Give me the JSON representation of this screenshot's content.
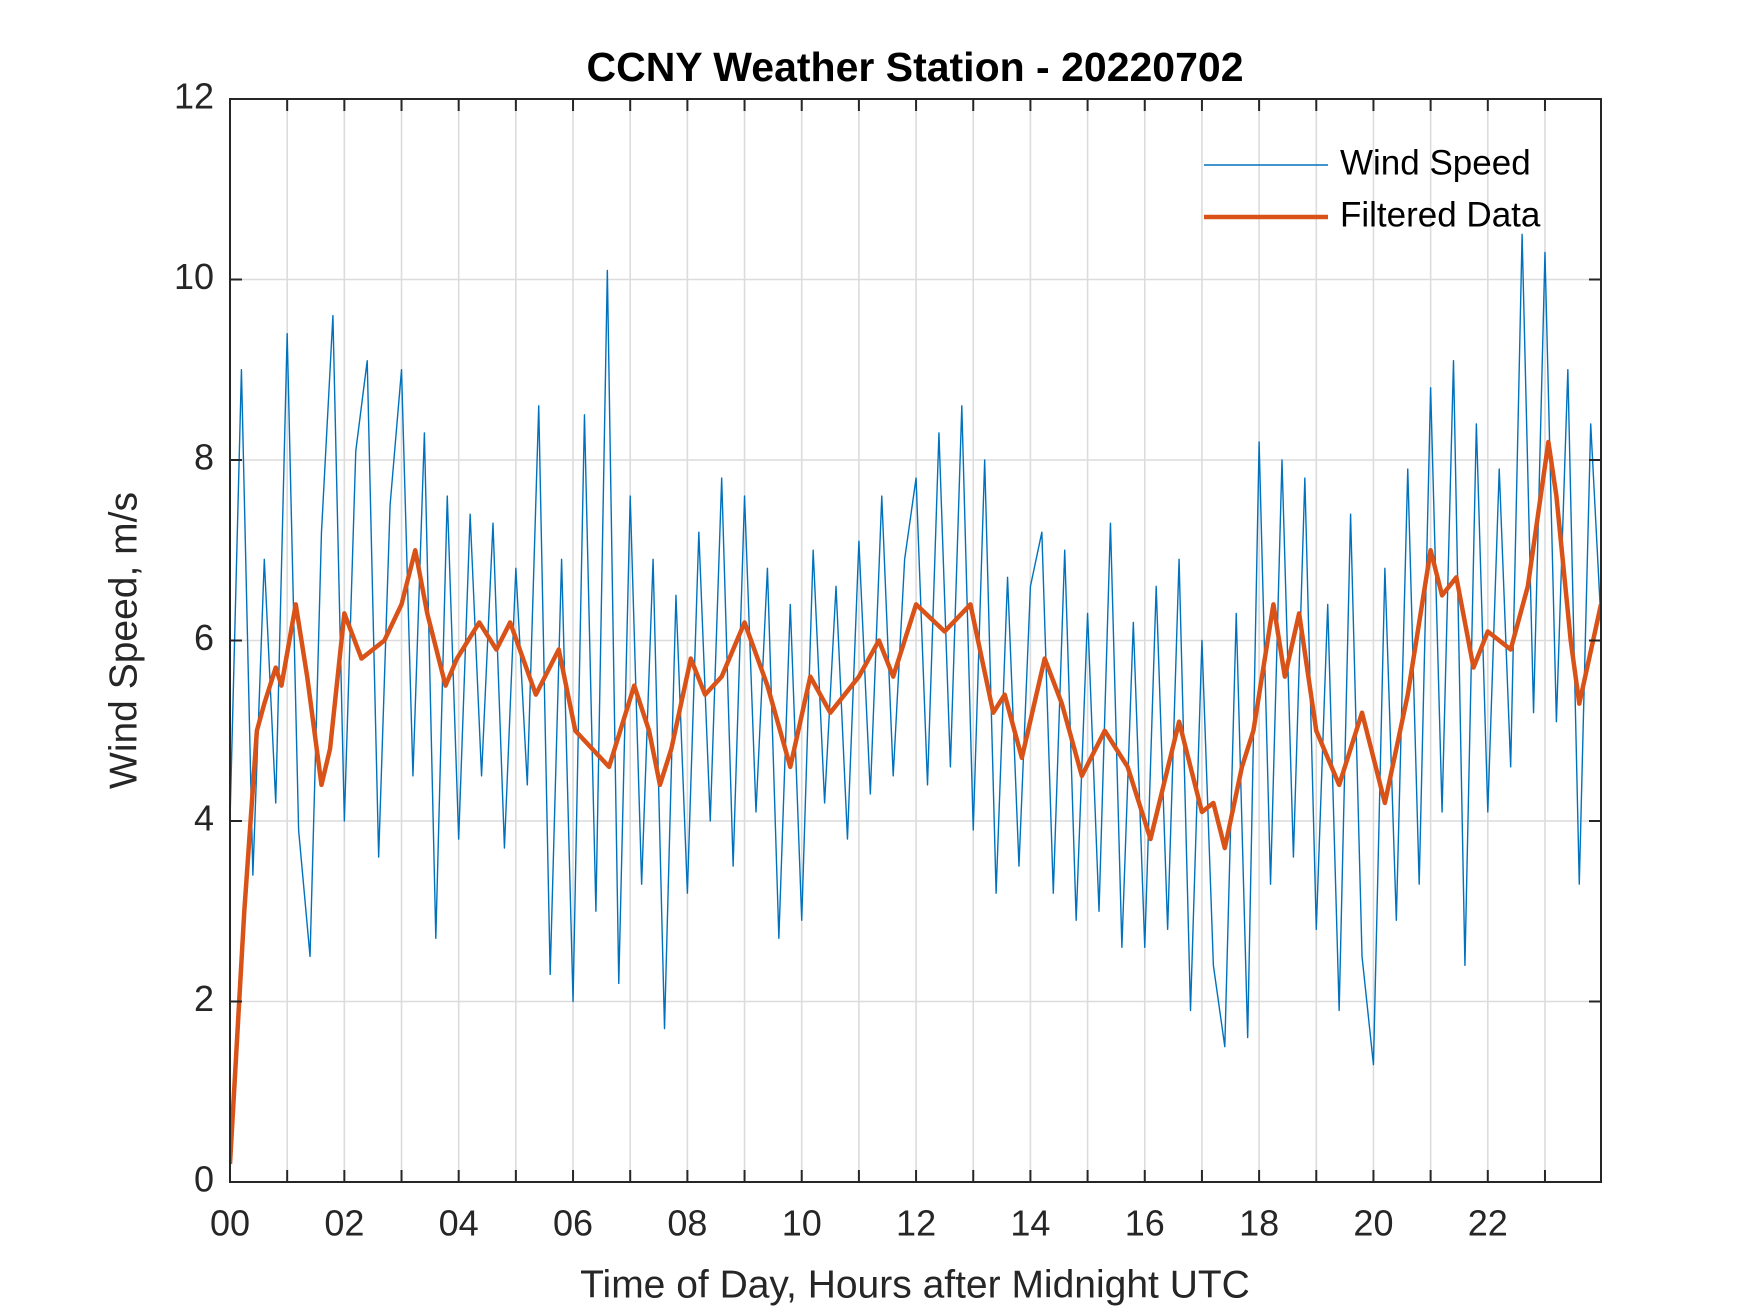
{
  "chart_data": {
    "type": "line",
    "title": "CCNY Weather Station - 20220702",
    "x_label": "Time of Day, Hours after Midnight UTC",
    "y_label": "Wind Speed, m/s",
    "xlim": [
      0,
      23.98
    ],
    "ylim": [
      0,
      12
    ],
    "xticks": [
      {
        "value": 0,
        "label": "00"
      },
      {
        "value": 2,
        "label": "02"
      },
      {
        "value": 4,
        "label": "04"
      },
      {
        "value": 6,
        "label": "06"
      },
      {
        "value": 8,
        "label": "08"
      },
      {
        "value": 10,
        "label": "10"
      },
      {
        "value": 12,
        "label": "12"
      },
      {
        "value": 14,
        "label": "14"
      },
      {
        "value": 16,
        "label": "16"
      },
      {
        "value": 18,
        "label": "18"
      },
      {
        "value": 20,
        "label": "20"
      },
      {
        "value": 22,
        "label": "22"
      }
    ],
    "xminorticks": [
      1,
      3,
      5,
      7,
      9,
      11,
      13,
      15,
      17,
      19,
      21,
      23
    ],
    "yticks": [
      0,
      2,
      4,
      6,
      8,
      10,
      12
    ],
    "grid": true,
    "legend": "upper right",
    "series": [
      {
        "name": "Wind Speed",
        "color": "#0072BD",
        "width": 1.4,
        "x": [
          0,
          0.2,
          0.4,
          0.6,
          0.8,
          1,
          1.2,
          1.4,
          1.6,
          1.8,
          2,
          2.2,
          2.4,
          2.6,
          2.8,
          3,
          3.2,
          3.4,
          3.6,
          3.8,
          4,
          4.2,
          4.4,
          4.6,
          4.8,
          5,
          5.2,
          5.4,
          5.6,
          5.8,
          6,
          6.2,
          6.4,
          6.6,
          6.8,
          7,
          7.2,
          7.4,
          7.6,
          7.8,
          8,
          8.2,
          8.4,
          8.6,
          8.8,
          9,
          9.2,
          9.4,
          9.6,
          9.8,
          10,
          10.2,
          10.4,
          10.6,
          10.8,
          11,
          11.2,
          11.4,
          11.6,
          11.8,
          12,
          12.2,
          12.4,
          12.6,
          12.8,
          13,
          13.2,
          13.4,
          13.6,
          13.8,
          14,
          14.2,
          14.4,
          14.6,
          14.8,
          15,
          15.2,
          15.4,
          15.6,
          15.8,
          16,
          16.2,
          16.4,
          16.6,
          16.8,
          17,
          17.2,
          17.4,
          17.6,
          17.8,
          18,
          18.2,
          18.4,
          18.6,
          18.8,
          19,
          19.2,
          19.4,
          19.6,
          19.8,
          20,
          20.2,
          20.4,
          20.6,
          20.8,
          21,
          21.2,
          21.4,
          21.6,
          21.8,
          22,
          22.2,
          22.4,
          22.6,
          22.8,
          23,
          23.2,
          23.4,
          23.6,
          23.8,
          23.98
        ],
        "values": [
          4.0,
          9.0,
          3.4,
          6.9,
          4.2,
          9.4,
          3.9,
          2.5,
          7.2,
          9.6,
          4.0,
          8.1,
          9.1,
          3.6,
          7.5,
          9.0,
          4.5,
          8.3,
          2.7,
          7.6,
          3.8,
          7.4,
          4.5,
          7.3,
          3.7,
          6.8,
          4.4,
          8.6,
          2.3,
          6.9,
          2.0,
          8.5,
          3.0,
          10.1,
          2.2,
          7.6,
          3.3,
          6.9,
          1.7,
          6.5,
          3.2,
          7.2,
          4.0,
          7.8,
          3.5,
          7.6,
          4.1,
          6.8,
          2.7,
          6.4,
          2.9,
          7.0,
          4.2,
          6.6,
          3.8,
          7.1,
          4.3,
          7.6,
          4.5,
          6.9,
          7.8,
          4.4,
          8.3,
          4.6,
          8.6,
          3.9,
          8.0,
          3.2,
          6.7,
          3.5,
          6.6,
          7.2,
          3.2,
          7.0,
          2.9,
          6.3,
          3.0,
          7.3,
          2.6,
          6.2,
          2.6,
          6.6,
          2.8,
          6.9,
          1.9,
          6.0,
          2.4,
          1.5,
          6.3,
          1.6,
          8.2,
          3.3,
          8.0,
          3.6,
          7.8,
          2.8,
          6.4,
          1.9,
          7.4,
          2.5,
          1.3,
          6.8,
          2.9,
          7.9,
          3.3,
          8.8,
          4.1,
          9.1,
          2.4,
          8.4,
          4.1,
          7.9,
          4.6,
          10.5,
          5.2,
          10.3,
          5.1,
          9.0,
          3.3,
          8.4,
          6.2
        ]
      },
      {
        "name": "Filtered Data",
        "color": "#D95319",
        "width": 4.5,
        "x": [
          0,
          0.25,
          0.47,
          0.6,
          0.8,
          0.9,
          1.15,
          1.35,
          1.6,
          1.75,
          2,
          2.3,
          2.7,
          3,
          3.24,
          3.45,
          3.77,
          3.97,
          4.36,
          4.66,
          4.9,
          5.35,
          5.75,
          6.04,
          6.63,
          7.07,
          7.33,
          7.52,
          7.72,
          8.06,
          8.31,
          8.6,
          9,
          9.4,
          9.8,
          10.15,
          10.5,
          11,
          11.35,
          11.6,
          12,
          12.5,
          12.95,
          13.35,
          13.55,
          13.85,
          14.25,
          14.55,
          14.9,
          15.3,
          15.7,
          16.1,
          16.6,
          17,
          17.2,
          17.4,
          17.7,
          17.9,
          18.25,
          18.45,
          18.7,
          19,
          19.4,
          19.8,
          20.2,
          20.6,
          21,
          21.2,
          21.45,
          21.75,
          22,
          22.4,
          22.7,
          23.06,
          23.2,
          23.45,
          23.6,
          23.98
        ],
        "values": [
          0.2,
          3.0,
          5.0,
          5.3,
          5.7,
          5.5,
          6.4,
          5.6,
          4.4,
          4.8,
          6.3,
          5.8,
          6.0,
          6.4,
          7.0,
          6.3,
          5.5,
          5.8,
          6.2,
          5.9,
          6.2,
          5.4,
          5.9,
          5.0,
          4.6,
          5.5,
          5.0,
          4.4,
          4.8,
          5.8,
          5.4,
          5.6,
          6.2,
          5.5,
          4.6,
          5.6,
          5.2,
          5.6,
          6.0,
          5.6,
          6.4,
          6.1,
          6.4,
          5.2,
          5.4,
          4.7,
          5.8,
          5.3,
          4.5,
          5.0,
          4.6,
          3.8,
          5.1,
          4.1,
          4.2,
          3.7,
          4.6,
          5.0,
          6.4,
          5.6,
          6.3,
          5.0,
          4.4,
          5.2,
          4.2,
          5.4,
          7.0,
          6.5,
          6.7,
          5.7,
          6.1,
          5.9,
          6.6,
          8.2,
          7.6,
          6.0,
          5.3,
          6.4
        ]
      }
    ]
  }
}
